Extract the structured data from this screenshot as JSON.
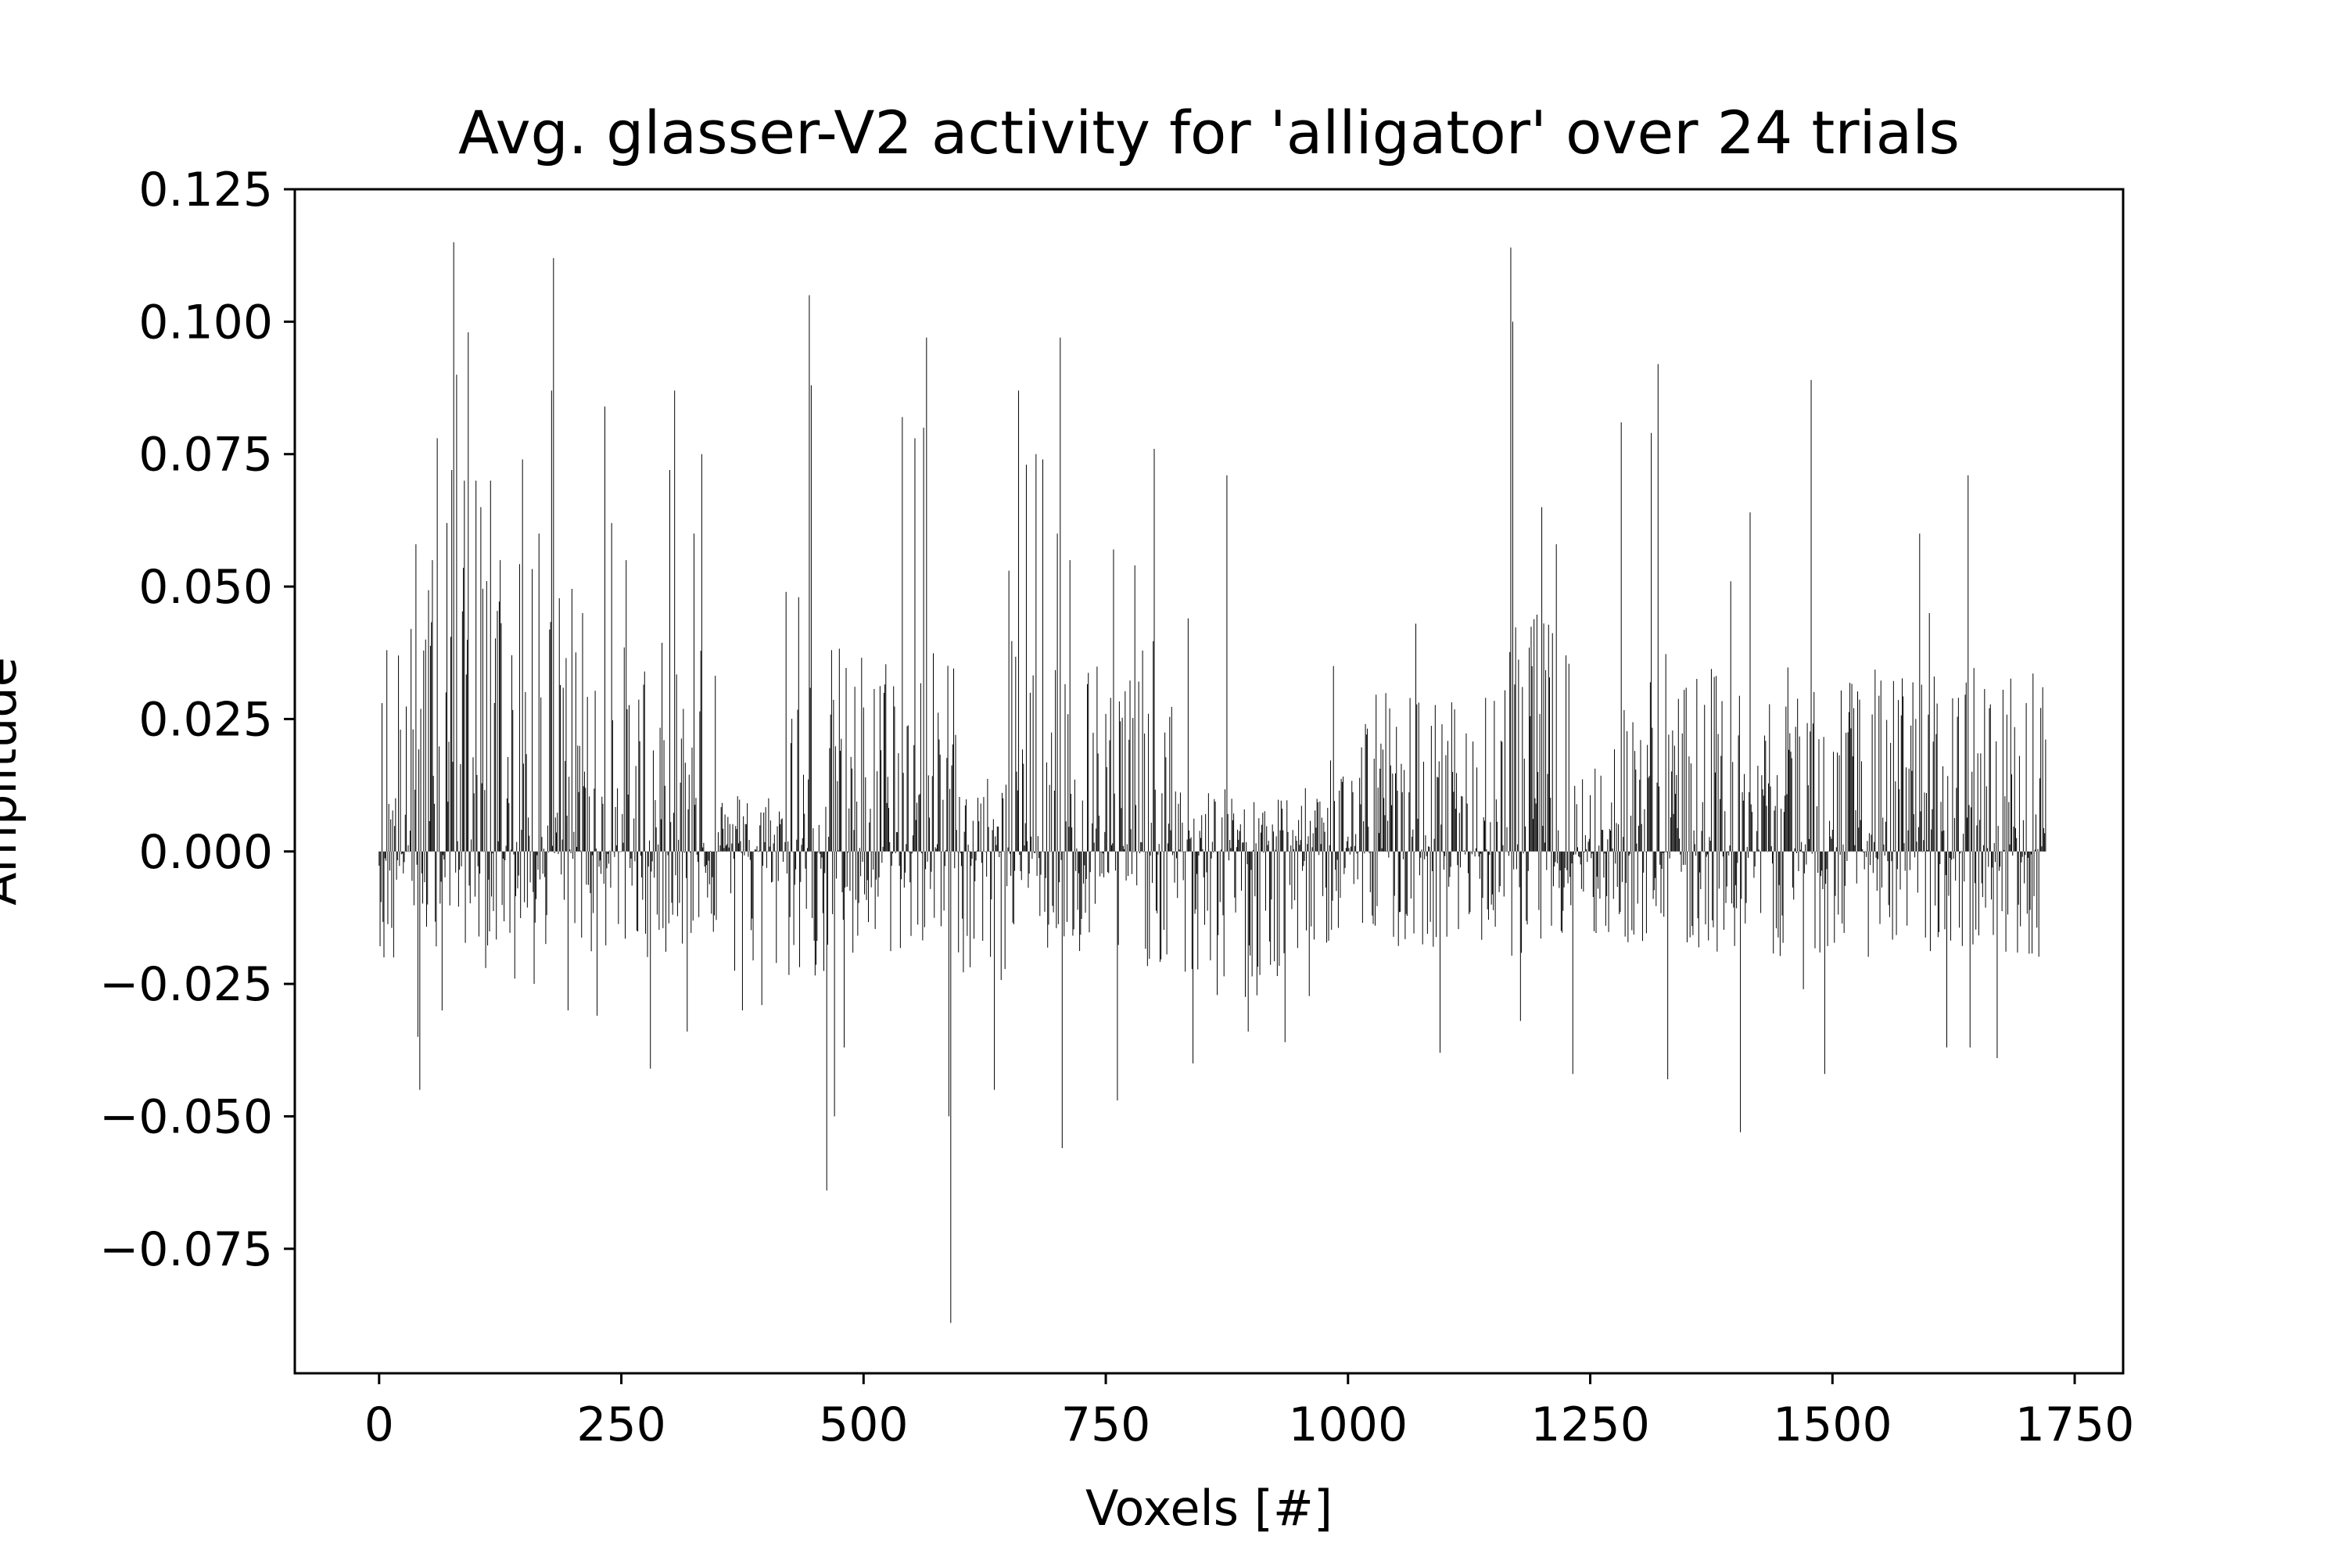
{
  "chart_data": {
    "type": "bar",
    "title": "Avg. glasser-V2 activity for 'alligator' over 24 trials",
    "xlabel": "Voxels [#]",
    "ylabel": "Amplitude",
    "xlim": [
      -87,
      1800
    ],
    "ylim": [
      -0.0985,
      0.125
    ],
    "x_ticks": [
      0,
      250,
      500,
      750,
      1000,
      1250,
      1500,
      1750
    ],
    "x_tick_labels": [
      "0",
      "250",
      "500",
      "750",
      "1000",
      "1250",
      "1500",
      "1750"
    ],
    "y_ticks": [
      0.125,
      0.1,
      0.075,
      0.05,
      0.025,
      0.0,
      -0.025,
      -0.05,
      -0.075
    ],
    "y_tick_labels": [
      "0.125",
      "0.100",
      "0.075",
      "0.050",
      "0.025",
      "0.000",
      "−0.025",
      "−0.050",
      "−0.075"
    ],
    "n_voxels": 1721,
    "grid": false,
    "bar_color": "#000000",
    "peaks": [
      {
        "x": 3,
        "value": 0.028
      },
      {
        "x": 5,
        "value": -0.02
      },
      {
        "x": 8,
        "value": 0.038
      },
      {
        "x": 15,
        "value": -0.02
      },
      {
        "x": 20,
        "value": 0.037
      },
      {
        "x": 33,
        "value": 0.042
      },
      {
        "x": 38,
        "value": 0.058
      },
      {
        "x": 40,
        "value": -0.035
      },
      {
        "x": 42,
        "value": -0.045
      },
      {
        "x": 48,
        "value": 0.04
      },
      {
        "x": 55,
        "value": 0.055
      },
      {
        "x": 60,
        "value": 0.078
      },
      {
        "x": 65,
        "value": -0.03
      },
      {
        "x": 70,
        "value": 0.062
      },
      {
        "x": 75,
        "value": 0.072
      },
      {
        "x": 77,
        "value": 0.115
      },
      {
        "x": 80,
        "value": 0.09
      },
      {
        "x": 88,
        "value": 0.07
      },
      {
        "x": 92,
        "value": 0.098
      },
      {
        "x": 100,
        "value": 0.07
      },
      {
        "x": 105,
        "value": 0.065
      },
      {
        "x": 110,
        "value": -0.022
      },
      {
        "x": 115,
        "value": 0.07
      },
      {
        "x": 125,
        "value": 0.055
      },
      {
        "x": 140,
        "value": -0.024
      },
      {
        "x": 148,
        "value": 0.074
      },
      {
        "x": 160,
        "value": -0.025
      },
      {
        "x": 165,
        "value": 0.06
      },
      {
        "x": 178,
        "value": 0.087
      },
      {
        "x": 180,
        "value": 0.112
      },
      {
        "x": 195,
        "value": -0.03
      },
      {
        "x": 210,
        "value": 0.045
      },
      {
        "x": 225,
        "value": -0.031
      },
      {
        "x": 233,
        "value": 0.084
      },
      {
        "x": 240,
        "value": 0.062
      },
      {
        "x": 255,
        "value": 0.055
      },
      {
        "x": 280,
        "value": -0.041
      },
      {
        "x": 300,
        "value": 0.072
      },
      {
        "x": 305,
        "value": 0.087
      },
      {
        "x": 318,
        "value": -0.034
      },
      {
        "x": 325,
        "value": 0.06
      },
      {
        "x": 333,
        "value": 0.075
      },
      {
        "x": 375,
        "value": -0.03
      },
      {
        "x": 395,
        "value": -0.029
      },
      {
        "x": 420,
        "value": 0.049
      },
      {
        "x": 433,
        "value": 0.048
      },
      {
        "x": 444,
        "value": 0.105
      },
      {
        "x": 446,
        "value": 0.088
      },
      {
        "x": 462,
        "value": -0.064
      },
      {
        "x": 470,
        "value": -0.05
      },
      {
        "x": 480,
        "value": -0.037
      },
      {
        "x": 540,
        "value": 0.082
      },
      {
        "x": 553,
        "value": 0.078
      },
      {
        "x": 562,
        "value": 0.08
      },
      {
        "x": 565,
        "value": 0.097
      },
      {
        "x": 588,
        "value": -0.05
      },
      {
        "x": 590,
        "value": -0.089
      },
      {
        "x": 595,
        "value": 0.022
      },
      {
        "x": 635,
        "value": -0.045
      },
      {
        "x": 650,
        "value": 0.053
      },
      {
        "x": 660,
        "value": 0.087
      },
      {
        "x": 668,
        "value": 0.073
      },
      {
        "x": 678,
        "value": 0.075
      },
      {
        "x": 685,
        "value": 0.074
      },
      {
        "x": 700,
        "value": 0.06
      },
      {
        "x": 703,
        "value": 0.097
      },
      {
        "x": 705,
        "value": -0.056
      },
      {
        "x": 713,
        "value": 0.055
      },
      {
        "x": 758,
        "value": 0.057
      },
      {
        "x": 762,
        "value": -0.047
      },
      {
        "x": 780,
        "value": 0.054
      },
      {
        "x": 800,
        "value": 0.076
      },
      {
        "x": 835,
        "value": 0.044
      },
      {
        "x": 840,
        "value": -0.04
      },
      {
        "x": 875,
        "value": 0.071
      },
      {
        "x": 897,
        "value": -0.034
      },
      {
        "x": 935,
        "value": -0.036
      },
      {
        "x": 985,
        "value": 0.035
      },
      {
        "x": 1070,
        "value": 0.043
      },
      {
        "x": 1095,
        "value": -0.038
      },
      {
        "x": 1168,
        "value": 0.114
      },
      {
        "x": 1170,
        "value": 0.1
      },
      {
        "x": 1178,
        "value": -0.032
      },
      {
        "x": 1200,
        "value": 0.065
      },
      {
        "x": 1215,
        "value": 0.058
      },
      {
        "x": 1232,
        "value": -0.042
      },
      {
        "x": 1282,
        "value": 0.081
      },
      {
        "x": 1313,
        "value": 0.079
      },
      {
        "x": 1320,
        "value": 0.092
      },
      {
        "x": 1330,
        "value": -0.043
      },
      {
        "x": 1395,
        "value": 0.051
      },
      {
        "x": 1405,
        "value": -0.053
      },
      {
        "x": 1415,
        "value": 0.064
      },
      {
        "x": 1470,
        "value": -0.026
      },
      {
        "x": 1478,
        "value": 0.089
      },
      {
        "x": 1492,
        "value": -0.042
      },
      {
        "x": 1590,
        "value": 0.06
      },
      {
        "x": 1600,
        "value": 0.045
      },
      {
        "x": 1618,
        "value": -0.037
      },
      {
        "x": 1640,
        "value": 0.071
      },
      {
        "x": 1642,
        "value": -0.037
      },
      {
        "x": 1670,
        "value": -0.039
      },
      {
        "x": 1700,
        "value": 0.028
      },
      {
        "x": 1717,
        "value": 0.031
      }
    ],
    "regional_envelope": [
      {
        "from": 0,
        "to": 40,
        "pos": 0.03,
        "neg": 0.018
      },
      {
        "from": 40,
        "to": 200,
        "pos": 0.055,
        "neg": 0.018
      },
      {
        "from": 200,
        "to": 270,
        "pos": 0.04,
        "neg": 0.02
      },
      {
        "from": 270,
        "to": 350,
        "pos": 0.04,
        "neg": 0.02
      },
      {
        "from": 350,
        "to": 420,
        "pos": 0.012,
        "neg": 0.025
      },
      {
        "from": 420,
        "to": 500,
        "pos": 0.04,
        "neg": 0.025
      },
      {
        "from": 500,
        "to": 600,
        "pos": 0.04,
        "neg": 0.02
      },
      {
        "from": 600,
        "to": 650,
        "pos": 0.015,
        "neg": 0.025
      },
      {
        "from": 650,
        "to": 820,
        "pos": 0.04,
        "neg": 0.022
      },
      {
        "from": 820,
        "to": 980,
        "pos": 0.012,
        "neg": 0.03
      },
      {
        "from": 980,
        "to": 1160,
        "pos": 0.03,
        "neg": 0.018
      },
      {
        "from": 1160,
        "to": 1230,
        "pos": 0.045,
        "neg": 0.02
      },
      {
        "from": 1230,
        "to": 1280,
        "pos": 0.02,
        "neg": 0.018
      },
      {
        "from": 1280,
        "to": 1330,
        "pos": 0.04,
        "neg": 0.018
      },
      {
        "from": 1330,
        "to": 1720,
        "pos": 0.035,
        "neg": 0.02
      }
    ]
  }
}
